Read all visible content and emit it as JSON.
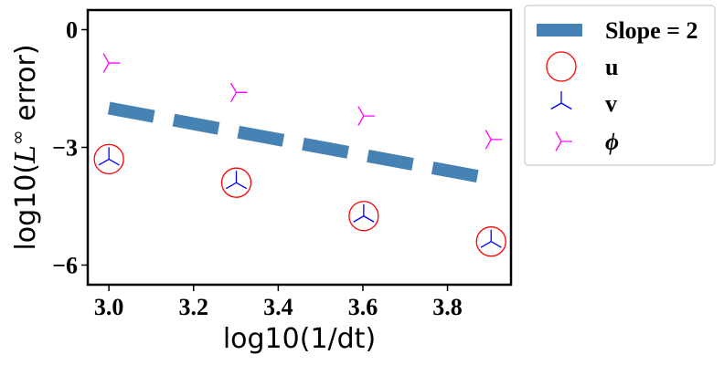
{
  "chart_data": {
    "type": "scatter",
    "xlabel": "log10(1/dt)",
    "ylabel_prefix": "log10(",
    "ylabel_math": "L",
    "ylabel_sup": "∞",
    "ylabel_suffix": " error)",
    "xlim": [
      2.95,
      3.95
    ],
    "ylim": [
      -6.5,
      0.5
    ],
    "xticks": [
      3.0,
      3.2,
      3.4,
      3.6,
      3.8
    ],
    "xtick_labels": [
      "3.0",
      "3.2",
      "3.4",
      "3.6",
      "3.8"
    ],
    "yticks": [
      0,
      -3,
      -6
    ],
    "ytick_labels": [
      "0",
      "−3",
      "−6"
    ],
    "legend_position": "outside-right-top",
    "series": [
      {
        "name": "Slope = 2",
        "kind": "dashed-line",
        "color": "#4682b4",
        "x": [
          3.0,
          3.903
        ],
        "y": [
          -2.0,
          -3.8
        ]
      },
      {
        "name": "u",
        "kind": "circle-marker",
        "color": "#ff0000",
        "x": [
          3.0,
          3.301,
          3.602,
          3.903
        ],
        "y": [
          -3.3,
          -3.9,
          -4.75,
          -5.4
        ]
      },
      {
        "name": "v",
        "kind": "tri-up-marker",
        "color": "#0000ff",
        "x": [
          3.0,
          3.301,
          3.602,
          3.903
        ],
        "y": [
          -3.3,
          -3.9,
          -4.75,
          -5.4
        ]
      },
      {
        "name": "ϕ",
        "kind": "tri-right-marker",
        "color": "#ff00ff",
        "x": [
          3.0,
          3.301,
          3.602,
          3.903
        ],
        "y": [
          -0.85,
          -1.6,
          -2.2,
          -2.8
        ]
      }
    ]
  }
}
